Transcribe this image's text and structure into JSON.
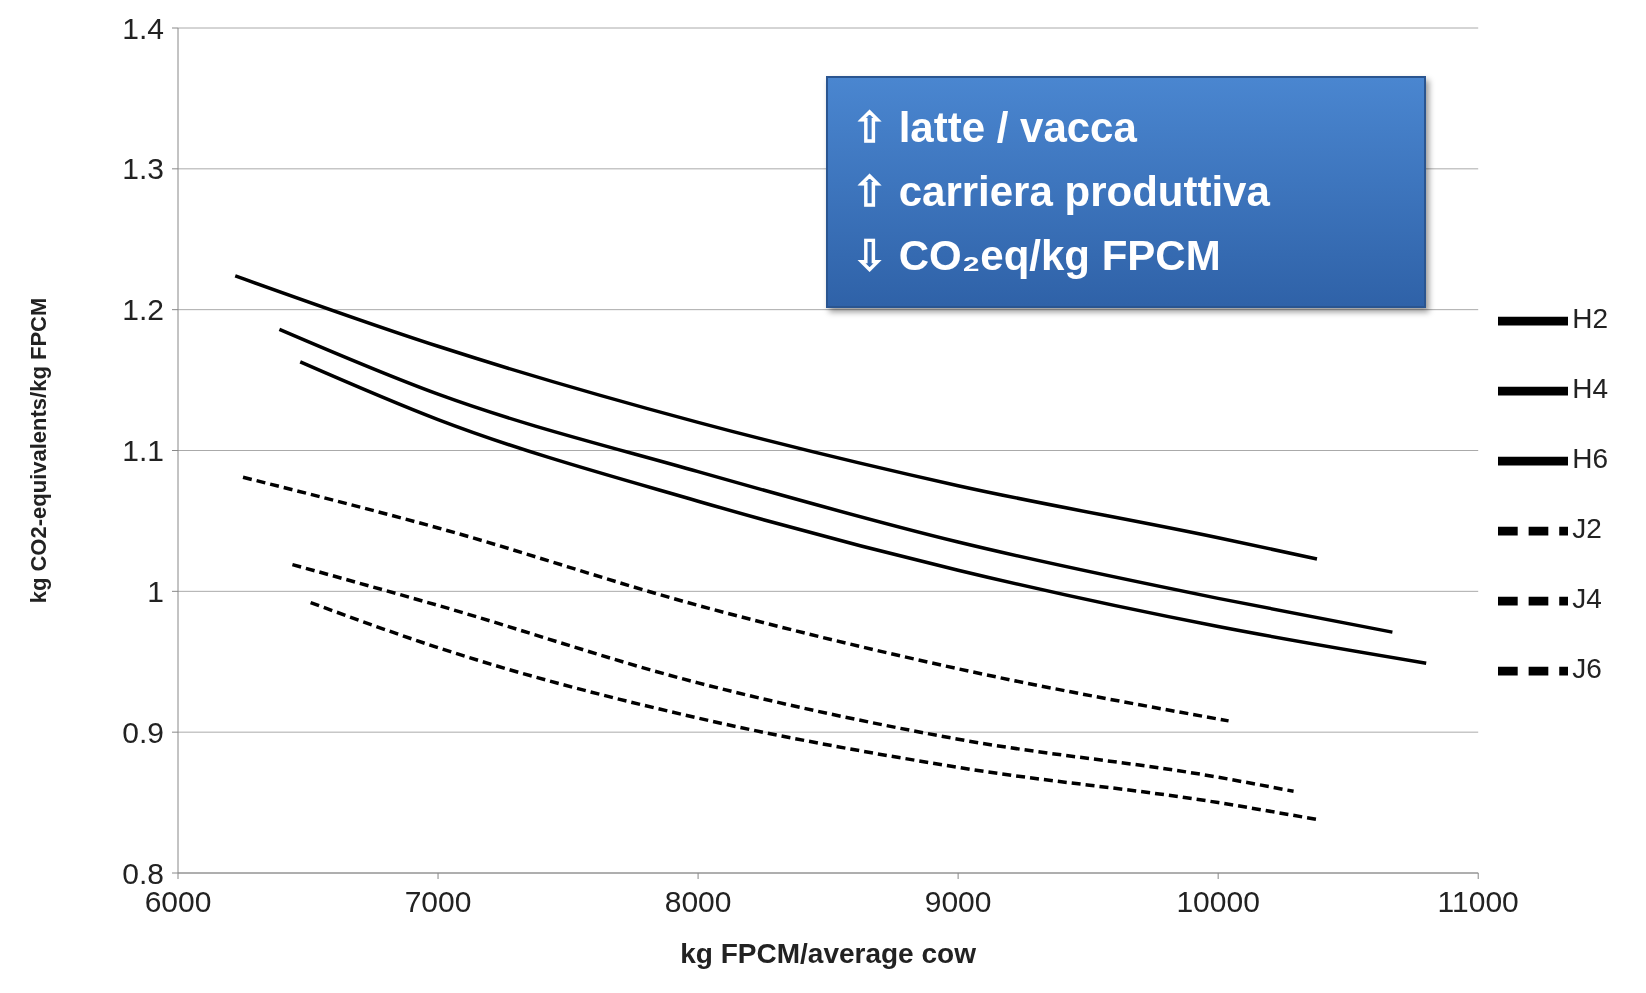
{
  "chart_data": {
    "type": "line",
    "xlabel": "kg FPCM/average cow",
    "ylabel": "kg CO2-equivalents/kg FPCM",
    "annotations": [
      "⇧ latte / vacca",
      "⇧ carriera produttiva",
      "⇩ CO₂eq/kg FPCM"
    ],
    "xlim": [
      6000,
      11000
    ],
    "xticks": [
      6000,
      7000,
      8000,
      9000,
      10000,
      11000
    ],
    "ylim": [
      0.8,
      1.4
    ],
    "yticks": [
      0.8,
      0.9,
      1,
      1.1,
      1.2,
      1.3,
      1.4
    ],
    "grid": "y",
    "legend": "right",
    "marker": "none",
    "series": [
      {
        "name": "H2",
        "color": "#000000",
        "line_style": "solid",
        "x": [
          6220,
          7000,
          8000,
          9000,
          10000,
          10380
        ],
        "values": [
          1.224,
          1.174,
          1.12,
          1.075,
          1.038,
          1.023
        ]
      },
      {
        "name": "H4",
        "color": "#000000",
        "line_style": "solid",
        "x": [
          6390,
          7000,
          8000,
          9000,
          10000,
          10670
        ],
        "values": [
          1.186,
          1.14,
          1.085,
          1.035,
          0.995,
          0.971
        ]
      },
      {
        "name": "H6",
        "color": "#000000",
        "line_style": "solid",
        "x": [
          6470,
          7000,
          8000,
          9000,
          10000,
          10800
        ],
        "values": [
          1.163,
          1.122,
          1.064,
          1.015,
          0.975,
          0.949
        ]
      },
      {
        "name": "J2",
        "color": "#000000",
        "line_style": "dashed",
        "x": [
          6250,
          7000,
          8000,
          9000,
          10040
        ],
        "values": [
          1.081,
          1.045,
          0.99,
          0.945,
          0.908
        ]
      },
      {
        "name": "J4",
        "color": "#000000",
        "line_style": "dashed",
        "x": [
          6440,
          7000,
          8000,
          9000,
          10000,
          10290
        ],
        "values": [
          1.019,
          0.99,
          0.935,
          0.895,
          0.868,
          0.858
        ]
      },
      {
        "name": "J6",
        "color": "#000000",
        "line_style": "dashed",
        "x": [
          6510,
          7000,
          8000,
          9000,
          10000,
          10380
        ],
        "values": [
          0.992,
          0.96,
          0.91,
          0.875,
          0.85,
          0.838
        ]
      }
    ]
  }
}
